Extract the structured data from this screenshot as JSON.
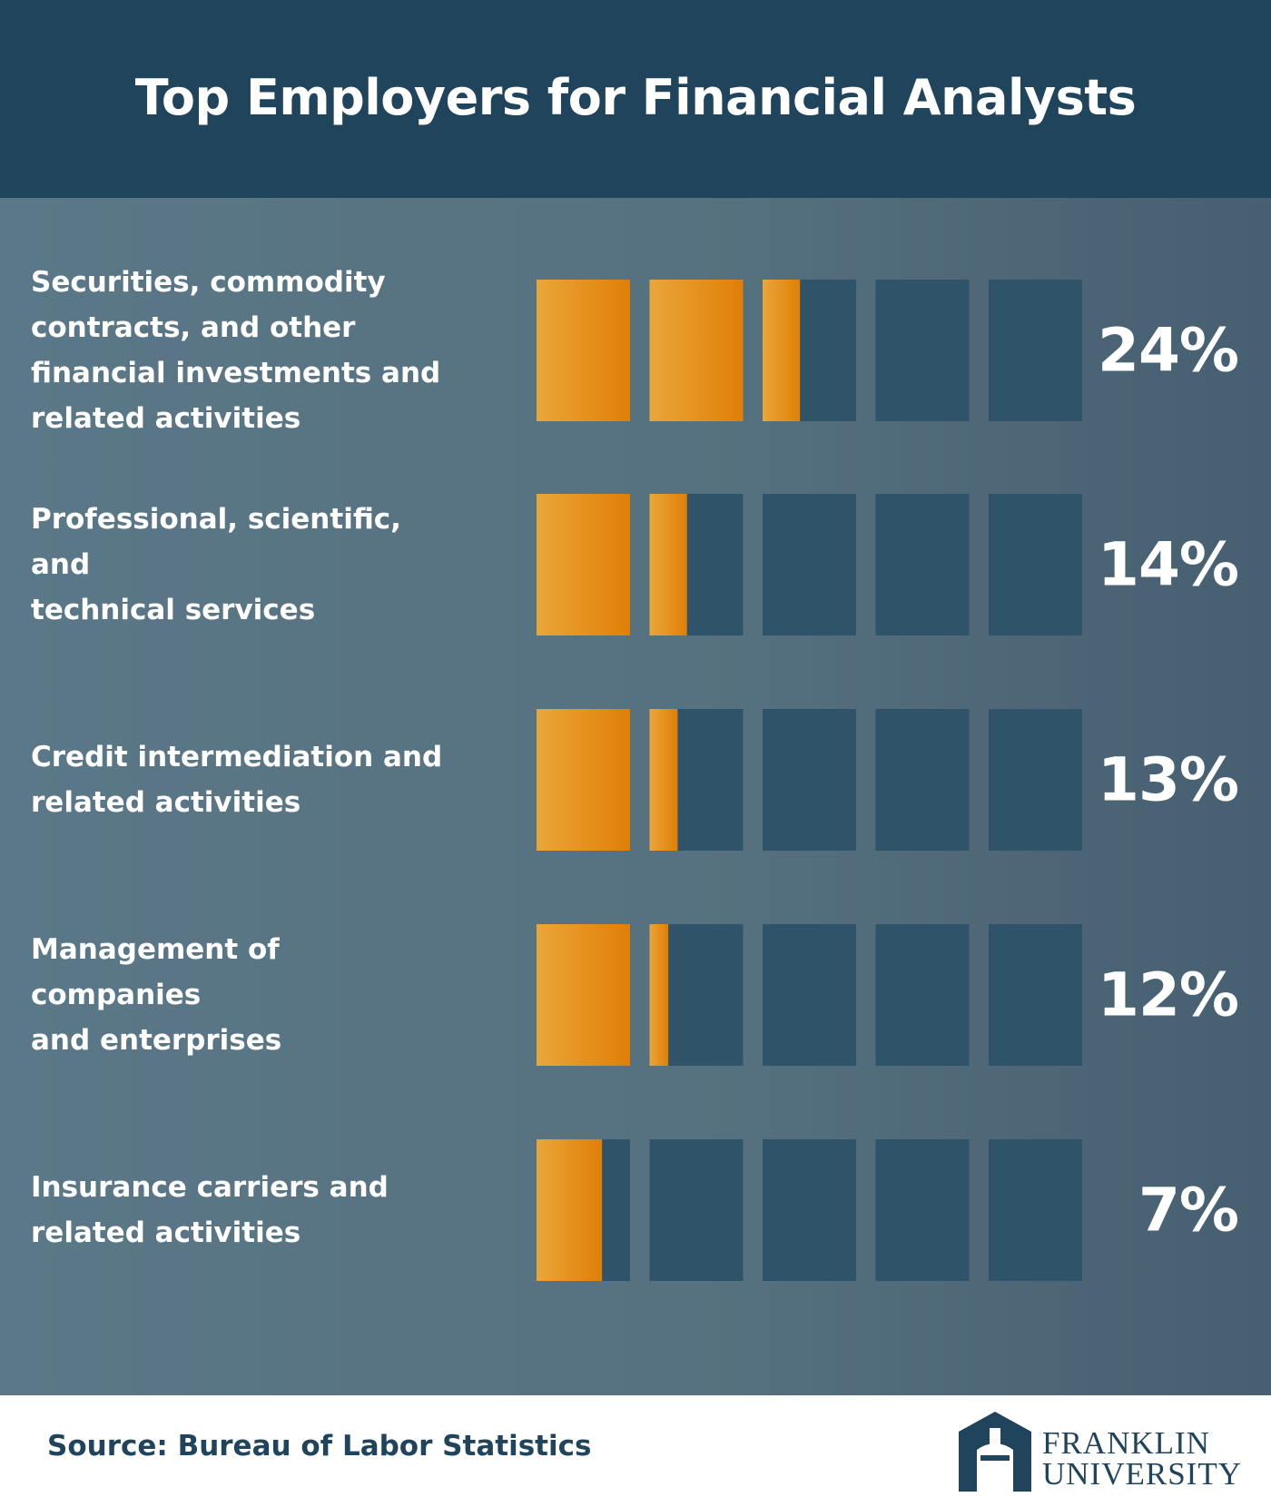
{
  "header": {
    "title": "Top Employers for Financial Analysts"
  },
  "chart_data": {
    "type": "bar",
    "title": "Top Employers for Financial Analysts",
    "unit": "%",
    "segment_count": 5,
    "segment_size": 10,
    "categories": [
      "Securities, commodity contracts, and other financial investments and related activities",
      "Professional, scientific, and technical services",
      "Credit intermediation and related activities",
      "Management of companies and enterprises",
      "Insurance carriers and related activities"
    ],
    "label_lines": [
      [
        "Securities, commodity",
        "contracts, and other",
        "financial investments and",
        "related activities"
      ],
      [
        "Professional, scientific, and",
        "technical services"
      ],
      [
        "Credit intermediation and",
        "related activities"
      ],
      [
        "Management of companies",
        "and enterprises"
      ],
      [
        "Insurance carriers and",
        "related activities"
      ]
    ],
    "values": [
      24,
      14,
      13,
      12,
      7
    ],
    "value_labels": [
      "24%",
      "14%",
      "13%",
      "12%",
      "7%"
    ],
    "colors": {
      "fill_start": "#eaa63a",
      "fill_end": "#e07f06",
      "empty": "#2f5368"
    }
  },
  "footer": {
    "source": "Source: Bureau of Labor Statistics",
    "logo_line1": "FRANKLIN",
    "logo_line2": "UNIVERSITY"
  }
}
